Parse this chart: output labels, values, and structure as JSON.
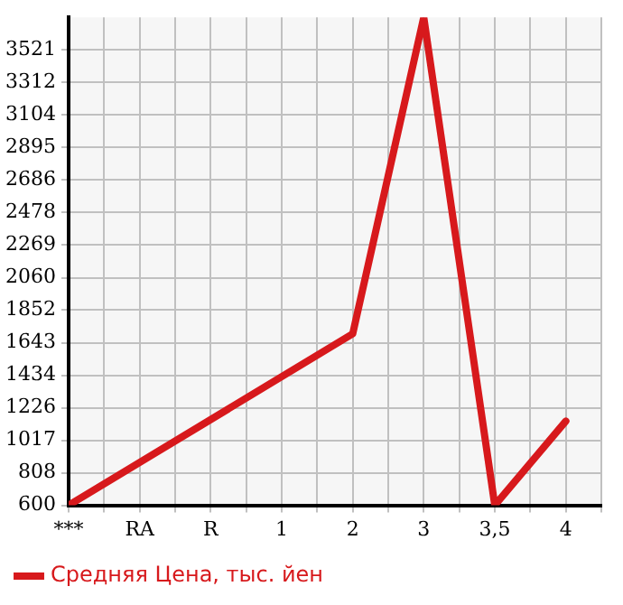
{
  "chart_data": {
    "type": "line",
    "categories": [
      "***",
      "RA",
      "R",
      "1",
      "2",
      "3",
      "3,5",
      "4"
    ],
    "series": [
      {
        "name": "Средняя Цена, тыс. йен",
        "color": "#d7191c",
        "values": [
          600,
          null,
          null,
          null,
          1700,
          3730,
          600,
          1140
        ]
      }
    ],
    "ylim": [
      600,
      3730
    ],
    "yticks": [
      600,
      808,
      1017,
      1226,
      1434,
      1643,
      1852,
      2060,
      2269,
      2478,
      2686,
      2895,
      3104,
      3312,
      3521
    ],
    "grid": true,
    "legend": "bottom left",
    "marker": "none",
    "line_style": "solid"
  }
}
